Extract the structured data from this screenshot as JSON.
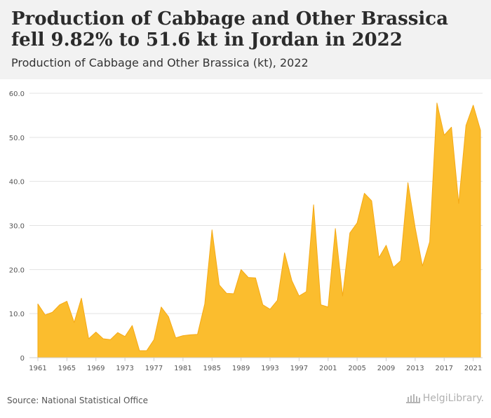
{
  "header": {
    "title": "Production of Cabbage and Other Brassica fell 9.82% to 51.6 kt in Jordan in 2022",
    "subtitle": "Production of Cabbage and Other Brassica (kt), 2022"
  },
  "footer": {
    "source": "Source: National Statistical Office",
    "logo_text": "HelgiLibrary."
  },
  "colors": {
    "area_fill": "#fbbd2e",
    "area_stroke": "#f5a915",
    "grid": "#e3e3e3",
    "axis_text": "#555555",
    "header_bg": "#f2f2f2"
  },
  "chart_data": {
    "type": "area",
    "title": "Production of Cabbage and Other Brassica fell 9.82% to 51.6 kt in Jordan in 2022",
    "subtitle": "Production of Cabbage and Other Brassica (kt), 2022",
    "xlabel": "",
    "ylabel": "",
    "ylim": [
      0,
      60
    ],
    "yticks": [
      0,
      10,
      20,
      30,
      40,
      50,
      60
    ],
    "ytick_labels": [
      "0",
      "10.0",
      "20.0",
      "30.0",
      "40.0",
      "50.0",
      "60.0"
    ],
    "xticks": [
      1961,
      1965,
      1969,
      1973,
      1977,
      1981,
      1985,
      1989,
      1993,
      1997,
      2001,
      2005,
      2009,
      2013,
      2017,
      2021
    ],
    "grid": true,
    "legend": "none",
    "x": [
      1961,
      1962,
      1963,
      1964,
      1965,
      1966,
      1967,
      1968,
      1969,
      1970,
      1971,
      1972,
      1973,
      1974,
      1975,
      1976,
      1977,
      1978,
      1979,
      1980,
      1981,
      1982,
      1983,
      1984,
      1985,
      1986,
      1987,
      1988,
      1989,
      1990,
      1991,
      1992,
      1993,
      1994,
      1995,
      1996,
      1997,
      1998,
      1999,
      2000,
      2001,
      2002,
      2003,
      2004,
      2005,
      2006,
      2007,
      2008,
      2009,
      2010,
      2011,
      2012,
      2013,
      2014,
      2015,
      2016,
      2017,
      2018,
      2019,
      2020,
      2021,
      2022
    ],
    "series": [
      {
        "values": [
          12.2,
          9.7,
          10.3,
          12.0,
          12.8,
          8.0,
          13.5,
          4.3,
          5.8,
          4.3,
          4.1,
          5.7,
          4.8,
          7.3,
          1.6,
          1.6,
          4.1,
          11.5,
          9.3,
          4.5,
          5.0,
          5.2,
          5.3,
          12.2,
          29.0,
          16.5,
          14.6,
          14.5,
          20.0,
          18.2,
          18.1,
          12.0,
          11.0,
          13.0,
          23.8,
          17.5,
          14.0,
          15.0,
          34.7,
          12.0,
          11.5,
          29.3,
          14.0,
          28.3,
          30.6,
          37.3,
          35.6,
          22.7,
          25.5,
          20.5,
          22.0,
          39.7,
          29.5,
          20.8,
          26.3,
          57.8,
          50.5,
          52.3,
          35.0,
          52.7,
          57.3,
          51.6
        ]
      }
    ]
  }
}
